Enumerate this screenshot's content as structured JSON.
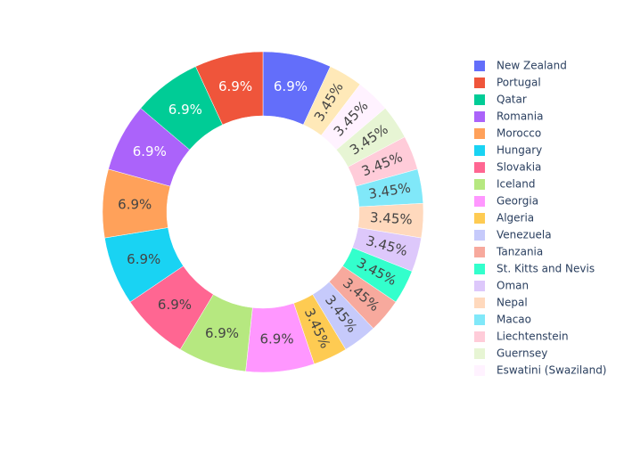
{
  "chart_data": {
    "type": "pie",
    "categories": [
      "New Zealand",
      "Portugal",
      "Qatar",
      "Romania",
      "Morocco",
      "Hungary",
      "Slovakia",
      "Iceland",
      "Georgia",
      "Algeria",
      "Venezuela",
      "Tanzania",
      "St. Kitts and Nevis",
      "Oman",
      "Nepal",
      "Macao",
      "Liechtenstein",
      "Guernsey",
      "Eswatini (Swaziland)",
      null
    ],
    "values": [
      6.9,
      6.9,
      6.9,
      6.9,
      6.9,
      6.9,
      6.9,
      6.9,
      6.9,
      3.45,
      3.45,
      3.45,
      3.45,
      3.45,
      3.45,
      3.45,
      3.45,
      3.45,
      3.45,
      3.45
    ],
    "value_labels": [
      "6.9%",
      "6.9%",
      "6.9%",
      "6.9%",
      "6.9%",
      "6.9%",
      "6.9%",
      "6.9%",
      "6.9%",
      "3.45%",
      "3.45%",
      "3.45%",
      "3.45%",
      "3.45%",
      "3.45%",
      "3.45%",
      "3.45%",
      "3.45%",
      "3.45%",
      "3.45%"
    ],
    "colors": [
      "#636efa",
      "#ef553b",
      "#00cc96",
      "#ab63fa",
      "#ffa15a",
      "#19d3f3",
      "#ff6692",
      "#b6e880",
      "#ff97ff",
      "#fecb52",
      "#c6cafb",
      "#f7a99d",
      "#33ffcc",
      "#ddc8fb",
      "#ffd9bd",
      "#80e8f9",
      "#ffccd9",
      "#e7f5d4",
      "#fff2ff",
      "#ffe9b8"
    ],
    "hole": 0.6
  }
}
